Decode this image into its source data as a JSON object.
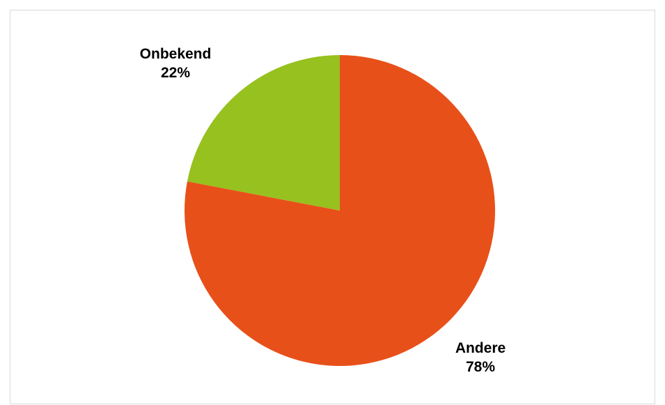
{
  "chart_data": {
    "type": "pie",
    "title": "",
    "slices": [
      {
        "name": "Andere",
        "value": 78,
        "label": "78%",
        "color": "#E8501A"
      },
      {
        "name": "Onbekend",
        "value": 22,
        "label": "22%",
        "color": "#97C11F"
      }
    ],
    "start": "12 o'clock",
    "direction": "clockwise",
    "legend": "none (category labels on slices)"
  }
}
